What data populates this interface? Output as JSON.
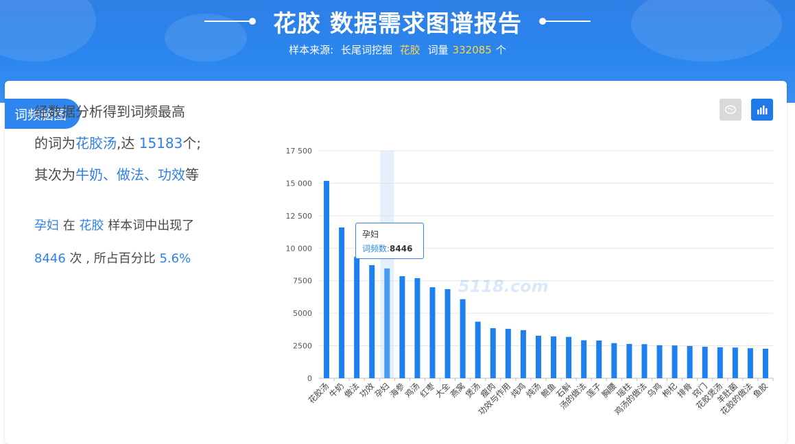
{
  "header": {
    "title": "花胶 数据需求图谱报告",
    "source_label": "样本来源:",
    "source_value": "长尾词挖掘",
    "keyword": "花胶",
    "count_label": "词量",
    "count_value": "332085",
    "count_unit": "个"
  },
  "tabs": {
    "active_label": "词频脑图"
  },
  "toolbar": {
    "cloud_icon": "brain-cloud-icon",
    "bar_icon": "bar-chart-icon"
  },
  "summary": {
    "line1": "经数据分析得到词频最高",
    "line2_prefix": "的词为",
    "top_word": "花胶汤",
    "line2_mid": ",达",
    "top_count": "15183",
    "line2_suffix": "个;",
    "line3_prefix": "其次为",
    "others": "牛奶、做法、功效",
    "line3_suffix": "等"
  },
  "detail": {
    "word": "孕妇",
    "mid1": "在",
    "sample": "花胶",
    "mid2": "样本词中出现了",
    "count": "8446",
    "mid3": "次 , 所占百分比",
    "percent": "5.6%"
  },
  "tooltip": {
    "name": "孕妇",
    "label": "词频数:",
    "value": "8446"
  },
  "watermark": "5118.com",
  "chart_data": {
    "type": "bar",
    "categories": [
      "花胶汤",
      "牛奶",
      "做法",
      "功效",
      "孕妇",
      "海参",
      "鸡汤",
      "红枣",
      "大全",
      "燕窝",
      "煲汤",
      "瘦肉",
      "功效与作用",
      "炖鸡",
      "炖汤",
      "鲍鱼",
      "石斛",
      "汤的做法",
      "莲子",
      "胸腰",
      "瑶柱",
      "鸡汤的做法",
      "乌鸡",
      "枸杞",
      "排骨",
      "窍门",
      "花胶煲汤",
      "羊肚菌",
      "花胶的做法",
      "鱼胶"
    ],
    "values": [
      15183,
      11600,
      9350,
      8700,
      8446,
      7850,
      7700,
      7000,
      6850,
      6080,
      4350,
      3850,
      3800,
      3700,
      3270,
      3220,
      3180,
      2920,
      2900,
      2700,
      2640,
      2620,
      2540,
      2520,
      2480,
      2420,
      2380,
      2360,
      2310,
      2270
    ],
    "yticks": [
      "17 500",
      "15 000",
      "12 500",
      "10 000",
      "7500",
      "5000",
      "2500",
      "0"
    ],
    "ylim": [
      0,
      17500
    ],
    "highlight_index": 4,
    "bar_color": "#1e80ef",
    "highlight_color": "#4a9cf3",
    "grid": true
  }
}
